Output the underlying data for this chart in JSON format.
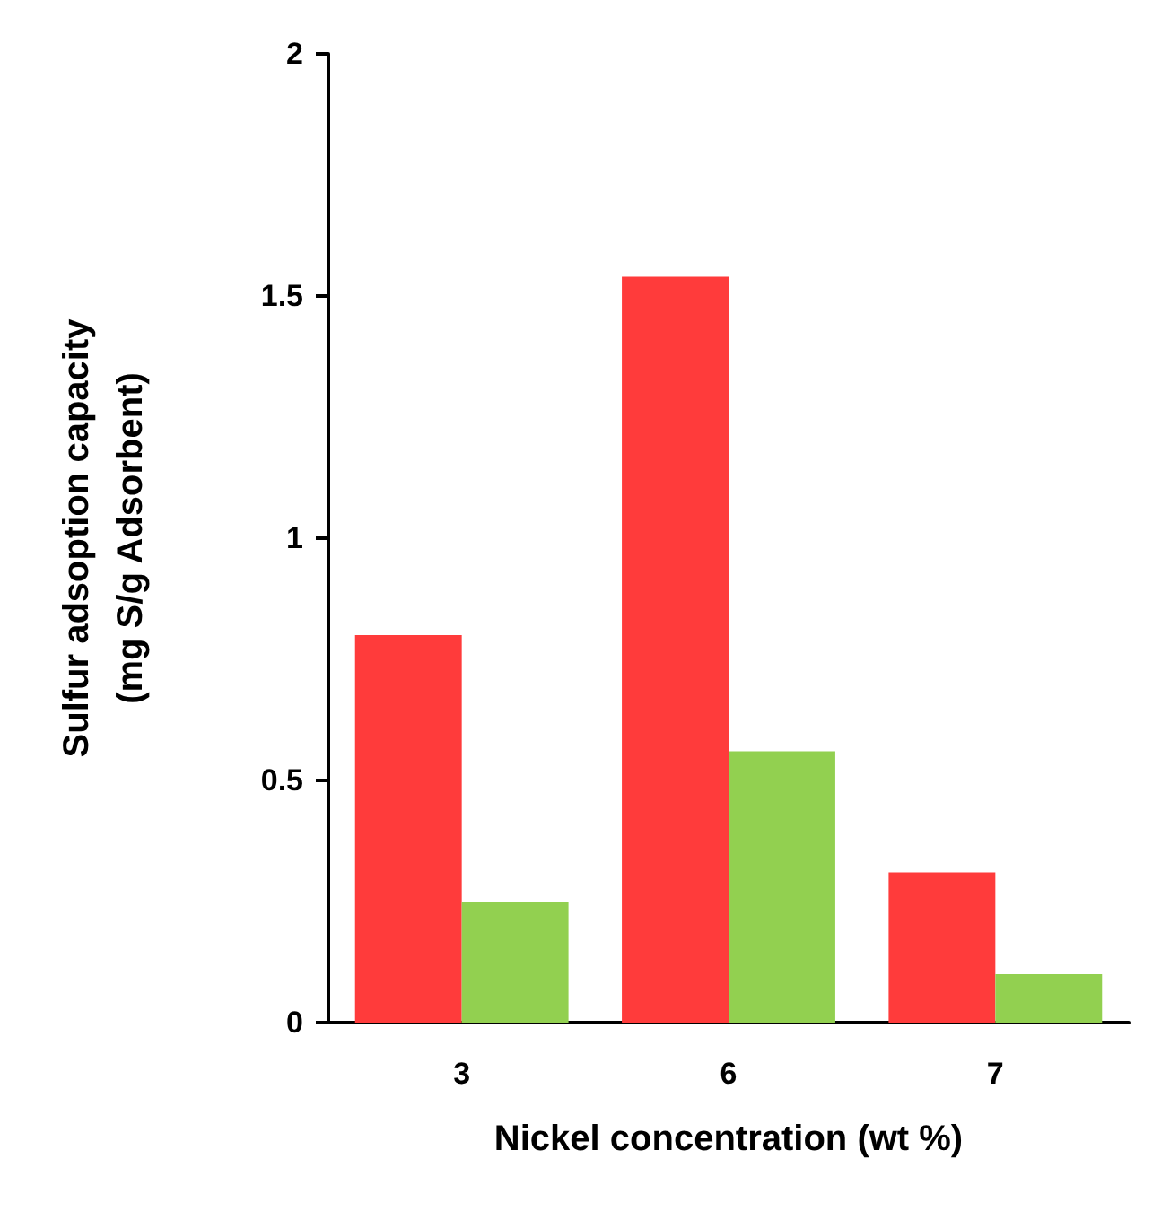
{
  "chart_data": {
    "type": "bar",
    "xlabel": "Nickel concentration (wt %)",
    "ylabel": "Sulfur adsoption capacity\n(mg S/g Adsorbent)",
    "categories": [
      "3",
      "6",
      "7"
    ],
    "series": [
      {
        "color": "#ff3b3b",
        "values": [
          0.8,
          1.54,
          0.31
        ]
      },
      {
        "color": "#92d050",
        "values": [
          0.25,
          0.56,
          0.1
        ]
      }
    ],
    "ylim": [
      0,
      2
    ],
    "yticks": [
      0,
      0.5,
      1,
      1.5,
      2
    ]
  }
}
